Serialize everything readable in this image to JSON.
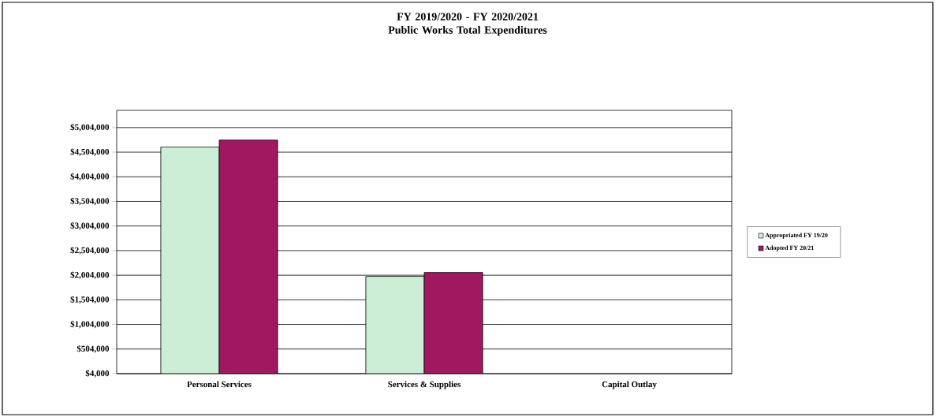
{
  "chart_data": {
    "type": "bar",
    "title": "FY 2019/2020 - FY 2020/2021\nPublic Works Total Expenditures",
    "categories": [
      "Personal Services",
      "Services & Supplies",
      "Capital Outlay"
    ],
    "series": [
      {
        "name": "Appropriated FY 19/20",
        "color": "#cdeed6",
        "values": [
          4610000,
          1980000,
          null
        ]
      },
      {
        "name": "Adopted FY 20/21",
        "color": "#a0185f",
        "values": [
          4750000,
          2060000,
          null
        ]
      }
    ],
    "ylim": [
      4000,
      5354000
    ],
    "yticks": [
      {
        "value": 4000,
        "label": "$4,000"
      },
      {
        "value": 504000,
        "label": "$504,000"
      },
      {
        "value": 1004000,
        "label": "$1,004,000"
      },
      {
        "value": 1504000,
        "label": "$1,504,000"
      },
      {
        "value": 2004000,
        "label": "$2,004,000"
      },
      {
        "value": 2504000,
        "label": "$2,504,000"
      },
      {
        "value": 3004000,
        "label": "$3,004,000"
      },
      {
        "value": 3504000,
        "label": "$3,504,000"
      },
      {
        "value": 4004000,
        "label": "$4,004,000"
      },
      {
        "value": 4504000,
        "label": "$4,504,000"
      },
      {
        "value": 5004000,
        "label": "$5,004,000"
      }
    ],
    "grid": "y",
    "legend": "right"
  }
}
